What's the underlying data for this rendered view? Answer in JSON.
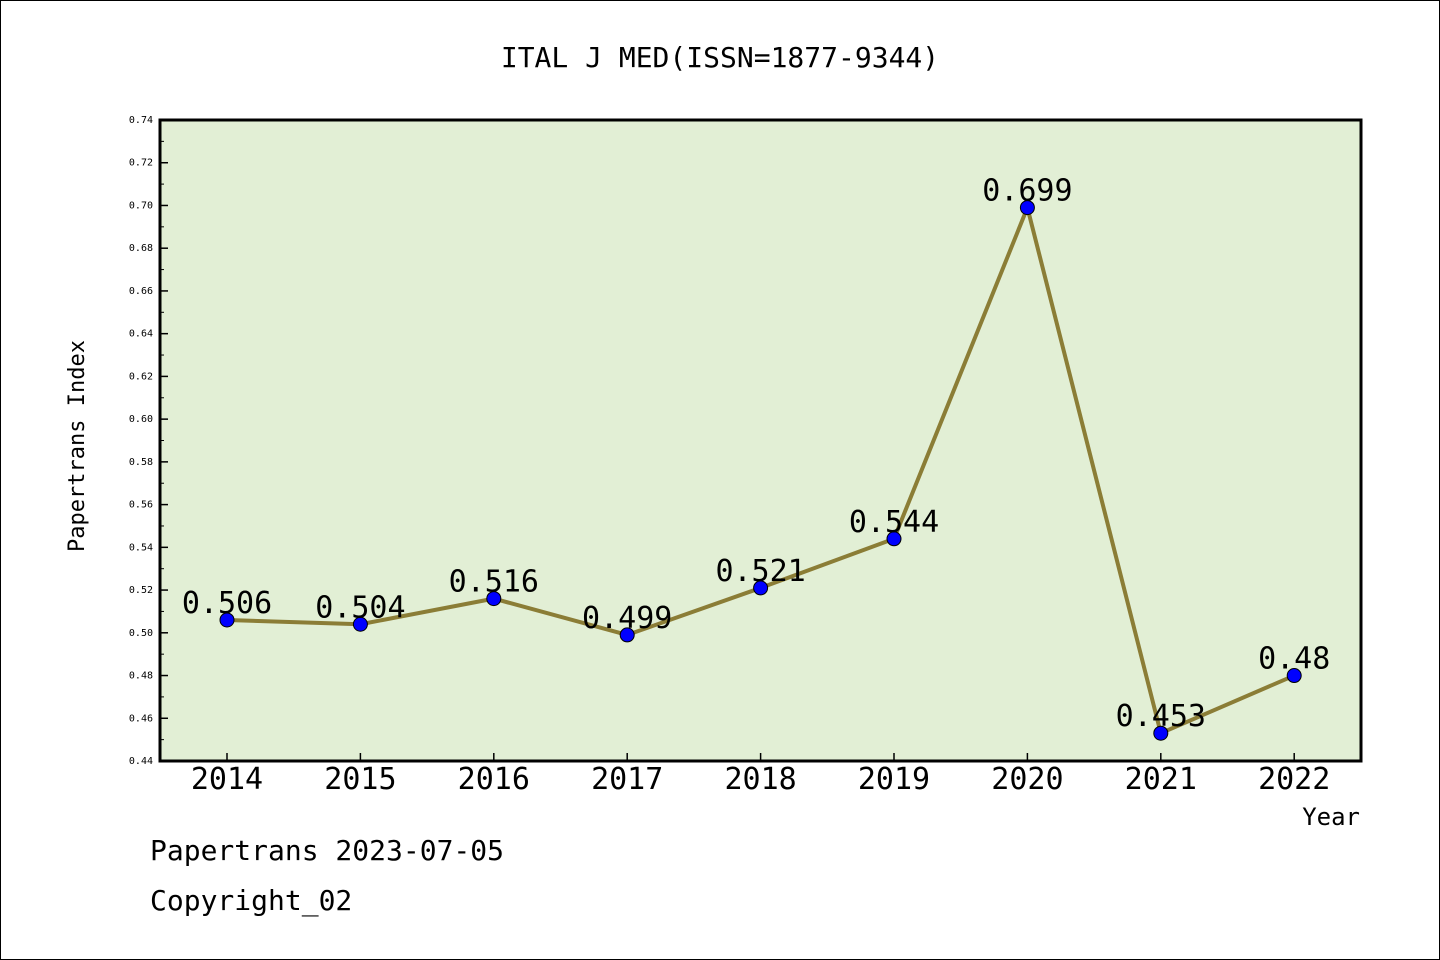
{
  "chart_data": {
    "type": "line",
    "title": "ITAL J MED(ISSN=1877-9344)",
    "xlabel": "Year",
    "ylabel": "Papertrans Index",
    "categories": [
      "2014",
      "2015",
      "2016",
      "2017",
      "2018",
      "2019",
      "2020",
      "2021",
      "2022"
    ],
    "values": [
      0.506,
      0.504,
      0.516,
      0.499,
      0.521,
      0.544,
      0.699,
      0.453,
      0.48
    ],
    "data_labels": [
      "0.506",
      "0.504",
      "0.516",
      "0.499",
      "0.521",
      "0.544",
      "0.699",
      "0.453",
      "0.48"
    ],
    "ylim": [
      0.44,
      0.74
    ],
    "yticks": [
      "0.44",
      "0.46",
      "0.48",
      "0.50",
      "0.52",
      "0.54",
      "0.56",
      "0.58",
      "0.60",
      "0.62",
      "0.64",
      "0.66",
      "0.68",
      "0.70",
      "0.72",
      "0.74"
    ],
    "grid": false,
    "legend": "none",
    "colors": {
      "plot_background": "#e2efd5",
      "line": "#8b7d36",
      "marker": "#0000ff"
    }
  },
  "footer": {
    "line1": "Papertrans 2023-07-05",
    "line2": "Copyright_02"
  }
}
